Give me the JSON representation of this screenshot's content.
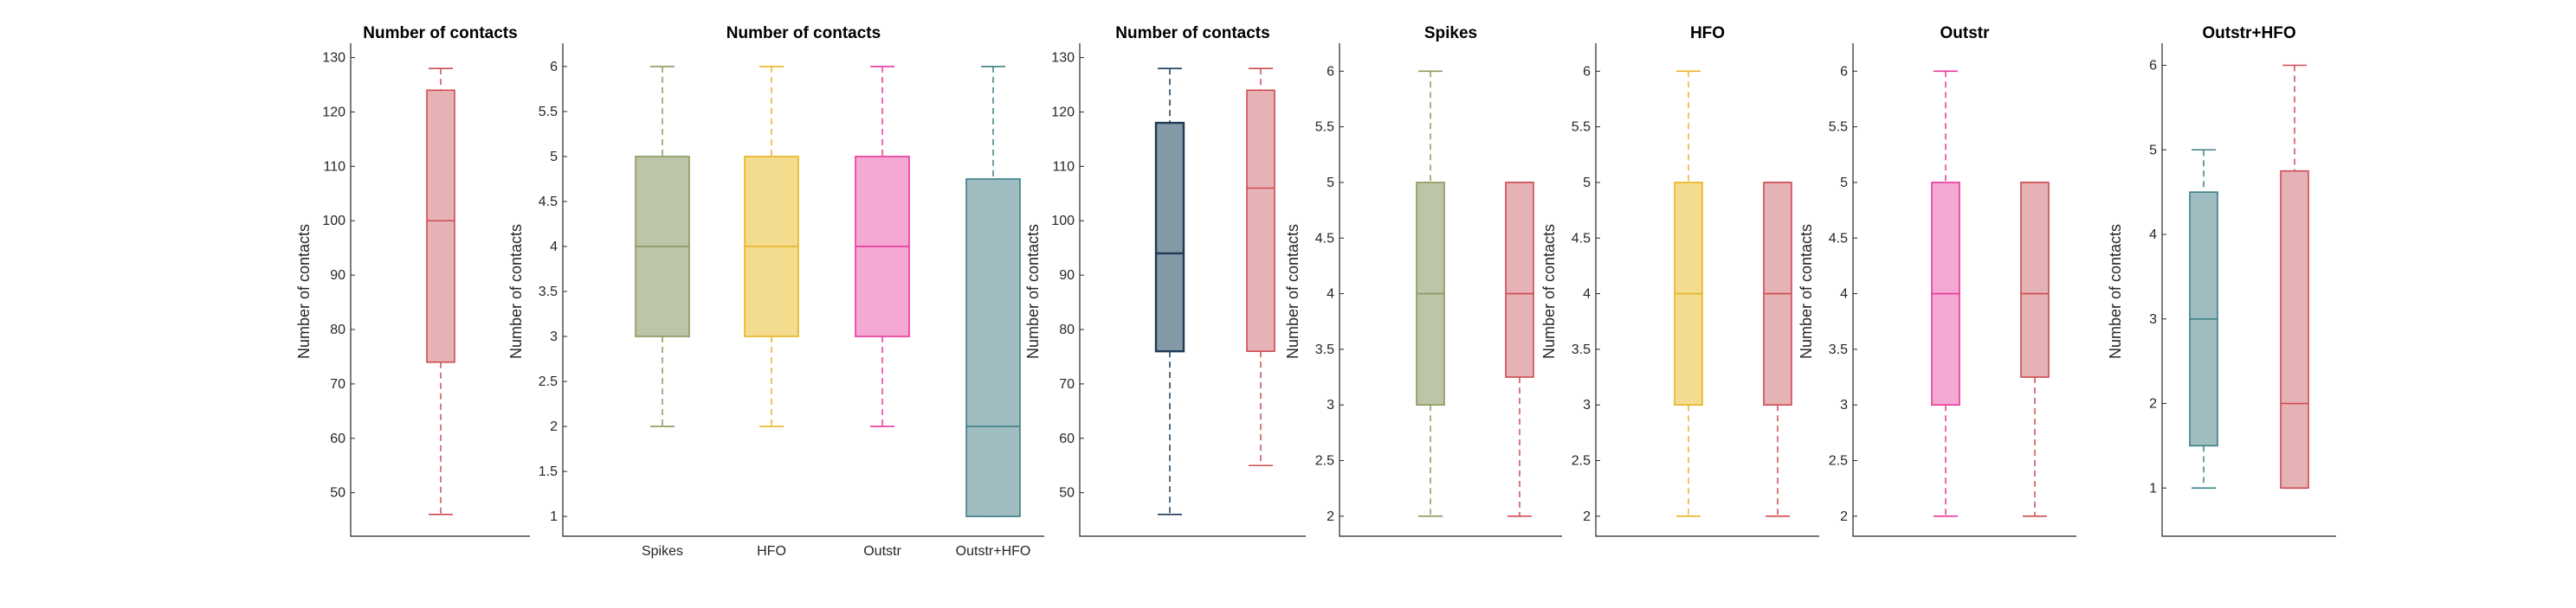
{
  "colors": {
    "spikes": "#8a9a5b",
    "spikes_fill": "#bcc4aa",
    "hfo": "#e8b422",
    "hfo_fill": "#f3dc8e",
    "outstr": "#e8379b",
    "outstr_fill": "#f5a8d2",
    "outstr_hfo": "#3d7f87",
    "outstr_hfo_fill": "#9fbcc0",
    "dark": "#1b3b57",
    "dark_fill": "#8499a6",
    "red": "#cf4b52",
    "red_fill": "#e5b3b5"
  },
  "chart_data": [
    {
      "type": "box",
      "title": "Number of contacts",
      "ylabel": "Number of contacts",
      "ylim": [
        42,
        132
      ],
      "yticks": [
        50,
        60,
        70,
        80,
        90,
        100,
        110,
        120,
        130
      ],
      "boxes": [
        {
          "category": "",
          "color": "red",
          "min": 46,
          "q1": 74,
          "median": 100,
          "q3": 124,
          "max": 128
        }
      ]
    },
    {
      "type": "box",
      "title": "Number of contacts",
      "ylabel": "Number of contacts",
      "ylim": [
        0.78,
        6.22
      ],
      "yticks": [
        1,
        1.5,
        2,
        2.5,
        3,
        3.5,
        4,
        4.5,
        5,
        5.5,
        6
      ],
      "categories": [
        "Spikes",
        "HFO",
        "Outstr",
        "Outstr+HFO"
      ],
      "boxes": [
        {
          "category": "Spikes",
          "color": "spikes",
          "min": 2,
          "q1": 3,
          "median": 4,
          "q3": 5,
          "max": 6
        },
        {
          "category": "HFO",
          "color": "hfo",
          "min": 2,
          "q1": 3,
          "median": 4,
          "q3": 5,
          "max": 6
        },
        {
          "category": "Outstr",
          "color": "outstr",
          "min": 2,
          "q1": 3,
          "median": 4,
          "q3": 5,
          "max": 6
        },
        {
          "category": "Outstr+HFO",
          "color": "outstr_hfo",
          "min": 1,
          "q1": 1,
          "median": 2,
          "q3": 4.75,
          "max": 6
        }
      ]
    },
    {
      "type": "box",
      "title": "Number of contacts",
      "ylabel": "Number of contacts",
      "ylim": [
        42,
        132
      ],
      "yticks": [
        50,
        60,
        70,
        80,
        90,
        100,
        110,
        120,
        130
      ],
      "boxes": [
        {
          "category": "",
          "color": "dark",
          "min": 46,
          "q1": 76,
          "median": 94,
          "q3": 118,
          "max": 128
        },
        {
          "category": "",
          "color": "red",
          "min": 55,
          "q1": 76,
          "median": 106,
          "q3": 124,
          "max": 128
        }
      ]
    },
    {
      "type": "box",
      "title": "Spikes",
      "ylabel": "Number of contacts",
      "ylim": [
        1.82,
        6.22
      ],
      "yticks": [
        2,
        2.5,
        3,
        3.5,
        4,
        4.5,
        5,
        5.5,
        6
      ],
      "boxes": [
        {
          "category": "",
          "color": "spikes",
          "min": 2,
          "q1": 3,
          "median": 4,
          "q3": 5,
          "max": 6
        },
        {
          "category": "",
          "color": "red",
          "min": 2,
          "q1": 3.25,
          "median": 4,
          "q3": 5,
          "max": 5
        }
      ]
    },
    {
      "type": "box",
      "title": "HFO",
      "ylabel": "Number of contacts",
      "ylim": [
        1.82,
        6.22
      ],
      "yticks": [
        2,
        2.5,
        3,
        3.5,
        4,
        4.5,
        5,
        5.5,
        6
      ],
      "boxes": [
        {
          "category": "",
          "color": "hfo",
          "min": 2,
          "q1": 3,
          "median": 4,
          "q3": 5,
          "max": 6
        },
        {
          "category": "",
          "color": "red",
          "min": 2,
          "q1": 3,
          "median": 4,
          "q3": 5,
          "max": 5
        }
      ]
    },
    {
      "type": "box",
      "title": "Outstr",
      "ylabel": "Number of contacts",
      "ylim": [
        1.82,
        6.22
      ],
      "yticks": [
        2,
        2.5,
        3,
        3.5,
        4,
        4.5,
        5,
        5.5,
        6
      ],
      "boxes": [
        {
          "category": "",
          "color": "outstr",
          "min": 2,
          "q1": 3,
          "median": 4,
          "q3": 5,
          "max": 6
        },
        {
          "category": "",
          "color": "red",
          "min": 2,
          "q1": 3.25,
          "median": 4,
          "q3": 5,
          "max": 5
        }
      ]
    },
    {
      "type": "box",
      "title": "Outstr+HFO",
      "ylabel": "Number of contacts",
      "ylim": [
        0.43,
        6.22
      ],
      "yticks": [
        1,
        2,
        3,
        4,
        5,
        6
      ],
      "boxes": [
        {
          "category": "",
          "color": "outstr_hfo",
          "min": 1,
          "q1": 1.5,
          "median": 3,
          "q3": 4.5,
          "max": 5
        },
        {
          "category": "",
          "color": "red",
          "min": 1,
          "q1": 1,
          "median": 2,
          "q3": 4.75,
          "max": 6
        }
      ]
    }
  ]
}
